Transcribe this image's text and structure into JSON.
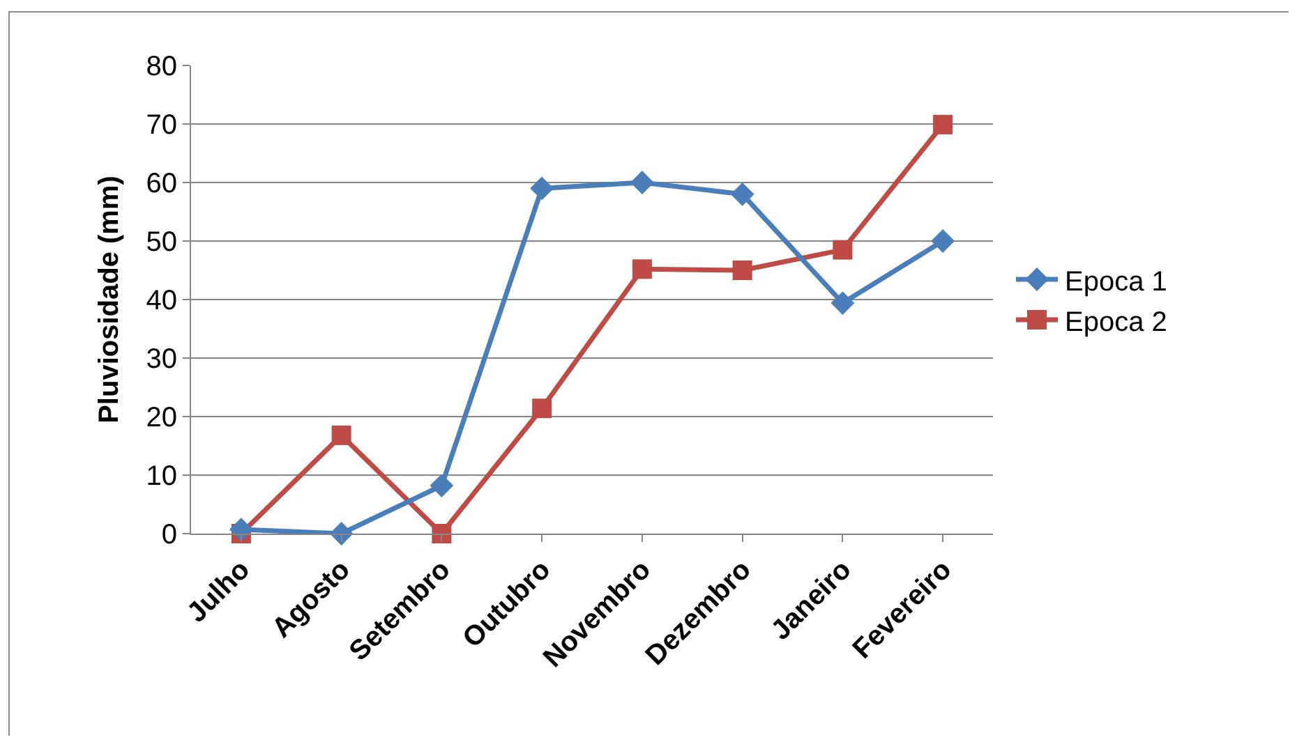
{
  "chart_data": {
    "type": "line",
    "ylabel": "Pluviosidade (mm)",
    "categories": [
      "Julho",
      "Agosto",
      "Setembro",
      "Outubro",
      "Novembro",
      "Dezembro",
      "Janeiro",
      "Fevereiro"
    ],
    "series": [
      {
        "name": "Epoca 1",
        "color": "#4a7ebb",
        "marker": "diamond",
        "values": [
          0.7,
          0,
          8.2,
          59,
          60,
          58,
          39.4,
          50
        ]
      },
      {
        "name": "Epoca 2",
        "color": "#be4b48",
        "marker": "square",
        "values": [
          0,
          16.8,
          0,
          21.4,
          45.2,
          45,
          48.5,
          69.9
        ]
      }
    ],
    "ylim": [
      0,
      80
    ],
    "yticks": [
      0,
      10,
      20,
      30,
      40,
      50,
      60,
      70,
      80
    ],
    "grid": "y",
    "legend": "right",
    "line_style": "solid"
  }
}
